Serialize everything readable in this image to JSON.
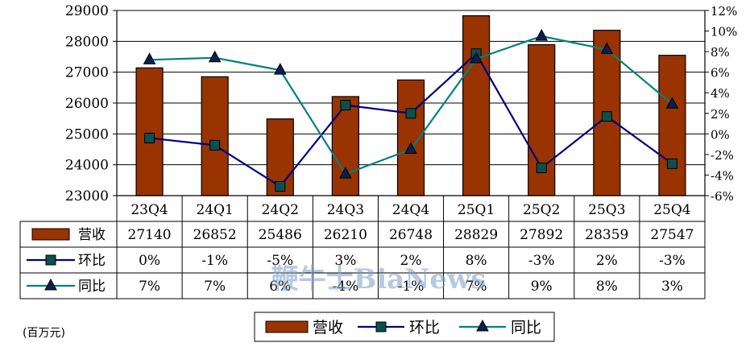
{
  "chart_data": {
    "type": "bar",
    "title": "",
    "unit_note": "(百万元)",
    "categories": [
      "23Q4",
      "24Q1",
      "24Q2",
      "24Q3",
      "24Q4",
      "25Q1",
      "25Q2",
      "25Q3",
      "25Q4"
    ],
    "y_left": {
      "min": 23000,
      "max": 29000,
      "step": 1000,
      "ticks": [
        "23000",
        "24000",
        "25000",
        "26000",
        "27000",
        "28000",
        "29000"
      ]
    },
    "y_right": {
      "min": -6,
      "max": 12,
      "step": 2,
      "ticks": [
        "-6%",
        "-4%",
        "-2%",
        "0%",
        "2%",
        "4%",
        "6%",
        "8%",
        "10%",
        "12%"
      ]
    },
    "grid": true,
    "legend_position": "bottom",
    "series": [
      {
        "name": "营收",
        "kind": "bar",
        "axis": "left",
        "color": "#993300",
        "values": [
          27140,
          26852,
          25486,
          26210,
          26748,
          28829,
          27892,
          28359,
          27547
        ],
        "labels": [
          "27140",
          "26852",
          "25486",
          "26210",
          "26748",
          "28829",
          "27892",
          "28359",
          "27547"
        ]
      },
      {
        "name": "环比",
        "kind": "line",
        "axis": "right",
        "color": "#000080",
        "marker": "square",
        "values": [
          -0.4,
          -1.1,
          -5.1,
          2.8,
          2.0,
          7.8,
          -3.3,
          1.7,
          -2.9
        ],
        "labels": [
          "0%",
          "-1%",
          "-5%",
          "3%",
          "2%",
          "8%",
          "-3%",
          "2%",
          "-3%"
        ]
      },
      {
        "name": "同比",
        "kind": "line",
        "axis": "right",
        "color": "#008080",
        "marker": "triangle",
        "values": [
          7.2,
          7.4,
          6.2,
          -3.9,
          -1.5,
          7.3,
          9.5,
          8.2,
          2.9
        ],
        "labels": [
          "7%",
          "7%",
          "6%",
          "-4%",
          "-1%",
          "7%",
          "9%",
          "8%",
          "3%"
        ]
      }
    ]
  },
  "watermark": "鞭牛士BiaNews"
}
